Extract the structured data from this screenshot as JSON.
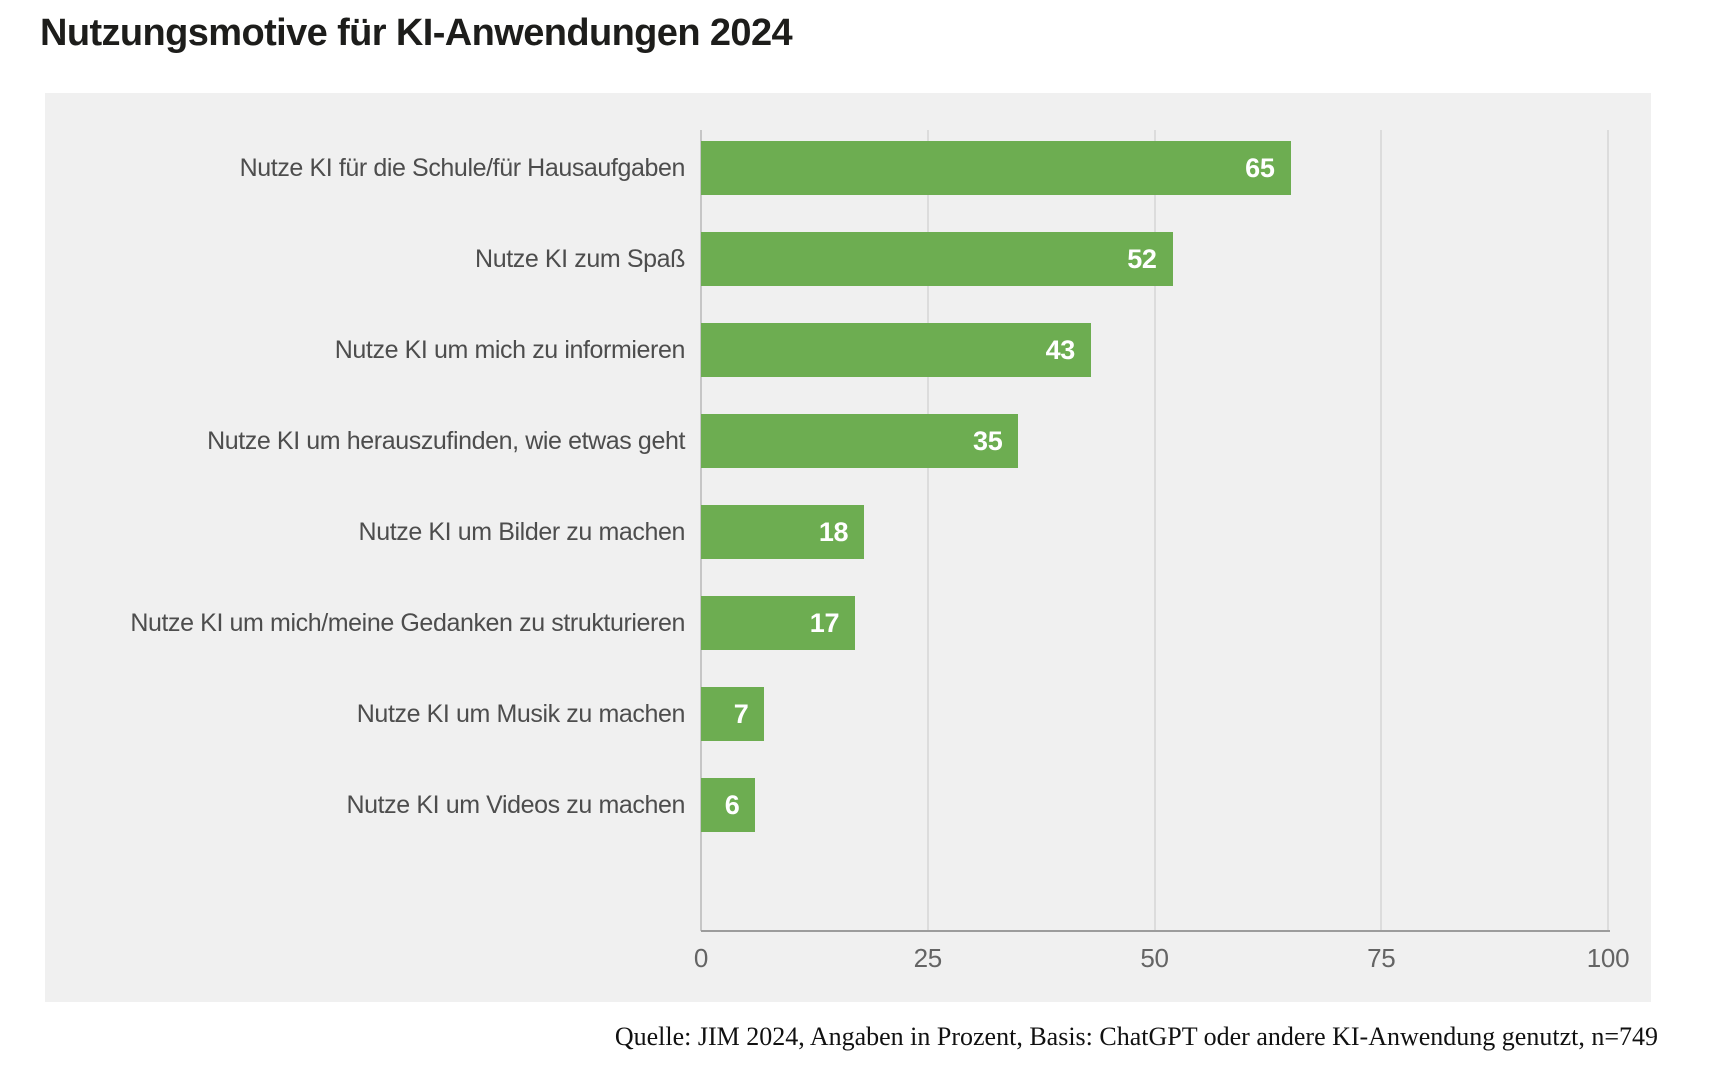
{
  "page": {
    "title": "Nutzungsmotive für KI-Anwendungen 2024",
    "source_note": "Quelle: JIM 2024, Angaben in Prozent, Basis: ChatGPT oder andere KI-Anwendung genutzt, n=749"
  },
  "colors": {
    "bar": "#6dad51",
    "panel_background": "#f0f0f0",
    "category_text": "#4d4d4d",
    "tick_text": "#646464",
    "gridline": "#dcdcdc",
    "zero_line": "#c6c6c6",
    "axis_line": "#9c9c9c",
    "value_text": "#ffffff",
    "title_text": "#1d1d1b"
  },
  "chart_data": {
    "type": "bar",
    "orientation": "horizontal",
    "title": "Nutzungsmotive für KI-Anwendungen 2024",
    "categories": [
      "Nutze KI für die Schule/für Hausaufgaben",
      "Nutze KI zum Spaß",
      "Nutze KI um mich zu informieren",
      "Nutze KI um herauszufinden, wie etwas geht",
      "Nutze KI um Bilder zu machen",
      "Nutze KI um mich/meine Gedanken zu strukturieren",
      "Nutze KI um Musik zu machen",
      "Nutze KI um Videos zu machen"
    ],
    "values": [
      65,
      52,
      43,
      35,
      18,
      17,
      7,
      6
    ],
    "unit": "Prozent",
    "xlim": [
      0,
      100
    ],
    "x_ticks": [
      0,
      25,
      50,
      75,
      100
    ],
    "grid": true,
    "legend": false,
    "value_labels_position": "inside-end",
    "source": "Quelle: JIM 2024, Angaben in Prozent, Basis: ChatGPT oder andere KI-Anwendung genutzt, n=749"
  }
}
